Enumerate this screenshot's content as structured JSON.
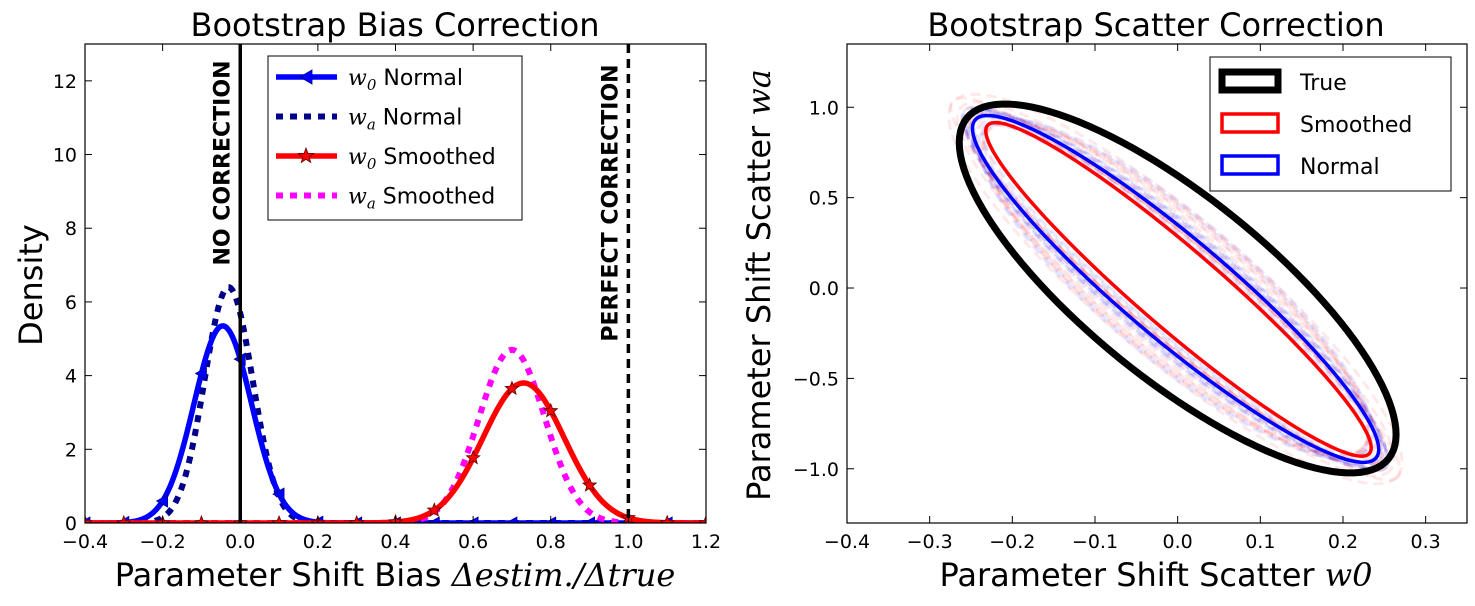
{
  "chart_data": [
    {
      "type": "line",
      "title": "Bootstrap Bias Correction",
      "xlabel": "Parameter Shift Bias",
      "xlabel_math": "Δestim./Δtrue",
      "ylabel": "Density",
      "xlim": [
        -0.4,
        1.2
      ],
      "ylim": [
        0,
        13
      ],
      "xticks": [
        "−0.4",
        "−0.2",
        "0.0",
        "0.2",
        "0.4",
        "0.6",
        "0.8",
        "1.0",
        "1.2"
      ],
      "xtick_values": [
        -0.4,
        -0.2,
        0.0,
        0.2,
        0.4,
        0.6,
        0.8,
        1.0,
        1.2
      ],
      "yticks": [
        "0",
        "2",
        "4",
        "6",
        "8",
        "10",
        "12"
      ],
      "ytick_values": [
        0,
        2,
        4,
        6,
        8,
        10,
        12
      ],
      "vlines": [
        {
          "x": 0.0,
          "label": "NO CORRECTION",
          "style": "solid"
        },
        {
          "x": 1.0,
          "label": "PERFECT CORRECTION",
          "style": "dashed"
        }
      ],
      "legend_position": "top-center",
      "series": [
        {
          "name": "w0 Normal",
          "sym": "w",
          "sub": "0",
          "word": "Normal",
          "color": "#0000ff",
          "style": "solid",
          "marker": "triangle-left",
          "dist": {
            "mu": -0.045,
            "sigma": 0.074,
            "peak": 5.35
          }
        },
        {
          "name": "wa Normal",
          "sym": "w",
          "sub": "a",
          "word": "Normal",
          "color": "#00008b",
          "style": "dotted",
          "marker": "none",
          "dist": {
            "mu": -0.03,
            "sigma": 0.062,
            "peak": 6.4
          }
        },
        {
          "name": "w0 Smoothed",
          "sym": "w",
          "sub": "0",
          "word": "Smoothed",
          "color": "#ff0000",
          "style": "solid",
          "marker": "star",
          "dist": {
            "mu": 0.73,
            "sigma": 0.105,
            "peak": 3.8
          }
        },
        {
          "name": "wa Smoothed",
          "sym": "w",
          "sub": "a",
          "word": "Smoothed",
          "color": "#ff00ff",
          "style": "dotted",
          "marker": "none",
          "dist": {
            "mu": 0.7,
            "sigma": 0.085,
            "peak": 4.7
          }
        }
      ]
    },
    {
      "type": "scatter",
      "title": "Bootstrap Scatter Correction",
      "xlabel": "Parameter Shift Scatter",
      "xlabel_math": "w0",
      "ylabel": "Parameter Shift Scatter",
      "ylabel_math": "wa",
      "xlim": [
        -0.4,
        0.35
      ],
      "ylim": [
        -1.3,
        1.35
      ],
      "xticks": [
        "−0.4",
        "−0.3",
        "−0.2",
        "−0.1",
        "0.0",
        "0.1",
        "0.2",
        "0.3"
      ],
      "xtick_values": [
        -0.4,
        -0.3,
        -0.2,
        -0.1,
        0.0,
        0.1,
        0.2,
        0.3
      ],
      "yticks": [
        "−1.0",
        "−0.5",
        "0.0",
        "0.5",
        "1.0"
      ],
      "ytick_values": [
        -1.0,
        -0.5,
        0.0,
        0.5,
        1.0
      ],
      "legend_position": "top-right",
      "ellipses": [
        {
          "name": "True",
          "color": "#000000",
          "endpoints": [
            [
              -0.255,
              0.94
            ],
            [
              0.255,
              -0.945
            ]
          ],
          "half_width": 0.05
        },
        {
          "name": "Smoothed",
          "color": "#ff0000",
          "endpoints": [
            [
              -0.23,
              0.9
            ],
            [
              0.232,
              -0.915
            ]
          ],
          "half_width": 0.022
        },
        {
          "name": "Normal",
          "color": "#0000ff",
          "endpoints": [
            [
              -0.245,
              0.93
            ],
            [
              0.24,
              -0.94
            ]
          ],
          "half_width": 0.028
        }
      ]
    }
  ]
}
